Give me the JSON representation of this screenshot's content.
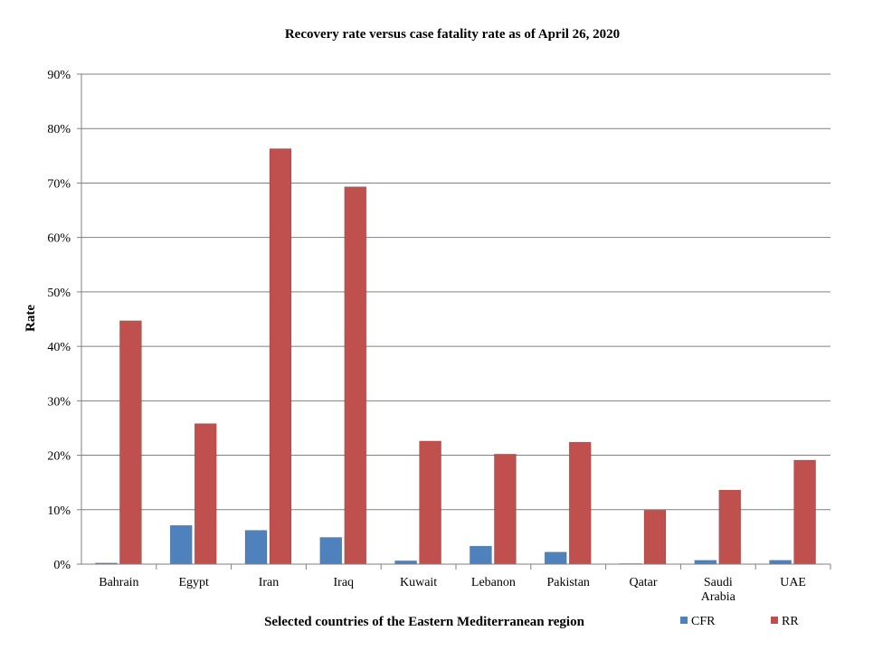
{
  "chart_data": {
    "type": "bar",
    "title": "Recovery rate versus case fatality rate as of  April 26,  2020",
    "xlabel": "Selected countries of the Eastern Mediterranean region",
    "ylabel": "Rate",
    "ylim": [
      0,
      90
    ],
    "yticks": [
      "0%",
      "10%",
      "20%",
      "30%",
      "40%",
      "50%",
      "60%",
      "70%",
      "80%",
      "90%"
    ],
    "categories": [
      "Bahrain",
      "Egypt",
      "Iran",
      "Iraq",
      "Kuwait",
      "Lebanon",
      "Pakistan",
      "Qatar",
      "Saudi Arabia",
      "UAE"
    ],
    "category_lines": [
      [
        "Bahrain"
      ],
      [
        "Egypt"
      ],
      [
        "Iran"
      ],
      [
        "Iraq"
      ],
      [
        "Kuwait"
      ],
      [
        "Lebanon"
      ],
      [
        "Pakistan"
      ],
      [
        "Qatar"
      ],
      [
        "Saudi",
        "Arabia"
      ],
      [
        "UAE"
      ]
    ],
    "series": [
      {
        "name": "CFR",
        "color": "#4f81bd",
        "values": [
          0.2,
          7.1,
          6.2,
          4.9,
          0.6,
          3.3,
          2.2,
          0.1,
          0.7,
          0.7
        ]
      },
      {
        "name": "RR",
        "color": "#c0504d",
        "values": [
          44.7,
          25.8,
          76.3,
          69.3,
          22.6,
          20.2,
          22.4,
          9.9,
          13.6,
          19.1
        ]
      }
    ],
    "grid": true,
    "legend_position": "bottom-right"
  }
}
